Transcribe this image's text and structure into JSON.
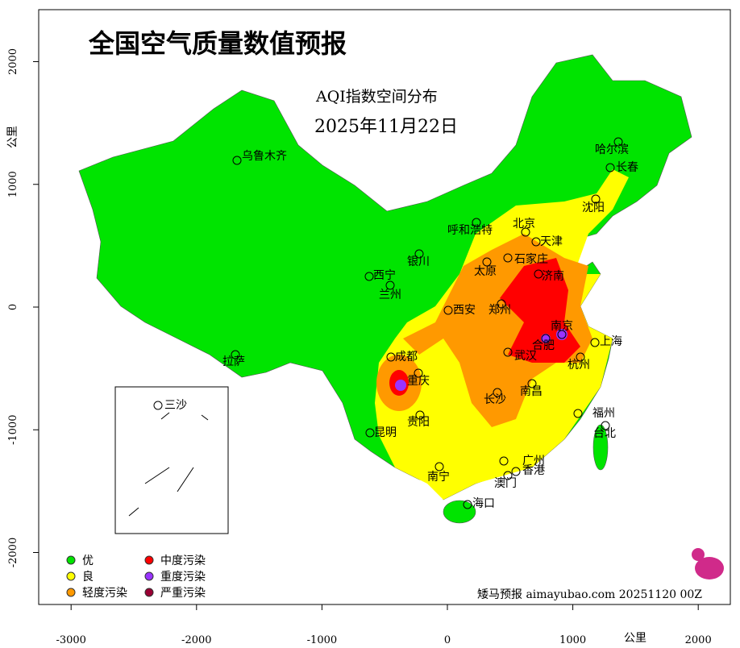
{
  "title": "全国空气质量数值预报",
  "subtitle": "AQI指数空间分布",
  "date": "2025年11月22日",
  "axes": {
    "xticks": [
      -3000,
      -2000,
      -1000,
      0,
      1000,
      2000
    ],
    "yticks": [
      -2000,
      -1000,
      0,
      1000,
      2000
    ],
    "x_label": "公里",
    "y_label": "公里"
  },
  "cities": [
    "乌鲁木齐",
    "哈尔滨",
    "长春",
    "沈阳",
    "呼和浩特",
    "北京",
    "天津",
    "石家庄",
    "银川",
    "太原",
    "济南",
    "西宁",
    "兰州",
    "西安",
    "郑州",
    "南京",
    "合肥",
    "上海",
    "武汉",
    "成都",
    "杭州",
    "重庆",
    "南昌",
    "长沙",
    "贵阳",
    "福州",
    "台北",
    "昆明",
    "广州",
    "南宁",
    "香港",
    "澳门",
    "海口",
    "拉萨",
    "三沙"
  ],
  "legend": [
    {
      "label": "优",
      "color": "#00e400"
    },
    {
      "label": "良",
      "color": "#ffff00"
    },
    {
      "label": "轻度污染",
      "color": "#ff9900"
    },
    {
      "label": "中度污染",
      "color": "#ff0000"
    },
    {
      "label": "重度污染",
      "color": "#9933ff"
    },
    {
      "label": "严重污染",
      "color": "#990033"
    }
  ],
  "footer": "矮马预报 aimayubao.com 20251120 00Z"
}
